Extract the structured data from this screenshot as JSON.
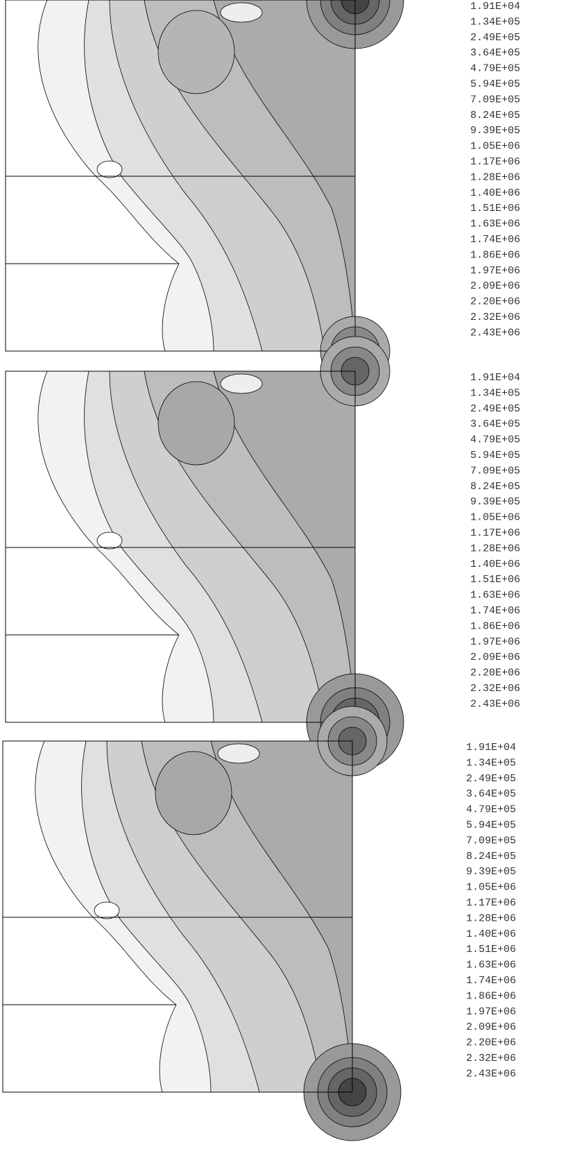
{
  "panels": [
    {
      "legend": [
        "1.91E+04",
        "1.34E+05",
        "2.49E+05",
        "3.64E+05",
        "4.79E+05",
        "5.94E+05",
        "7.09E+05",
        "8.24E+05",
        "9.39E+05",
        "1.05E+06",
        "1.17E+06",
        "1.28E+06",
        "1.40E+06",
        "1.51E+06",
        "1.63E+06",
        "1.74E+06",
        "1.86E+06",
        "1.97E+06",
        "2.09E+06",
        "2.20E+06",
        "2.32E+06",
        "2.43E+06"
      ]
    },
    {
      "legend": [
        "1.91E+04",
        "1.34E+05",
        "2.49E+05",
        "3.64E+05",
        "4.79E+05",
        "5.94E+05",
        "7.09E+05",
        "8.24E+05",
        "9.39E+05",
        "1.05E+06",
        "1.17E+06",
        "1.28E+06",
        "1.40E+06",
        "1.51E+06",
        "1.63E+06",
        "1.74E+06",
        "1.86E+06",
        "1.97E+06",
        "2.09E+06",
        "2.20E+06",
        "2.32E+06",
        "2.43E+06"
      ]
    },
    {
      "legend": [
        "1.91E+04",
        "1.34E+05",
        "2.49E+05",
        "3.64E+05",
        "4.79E+05",
        "5.94E+05",
        "7.09E+05",
        "8.24E+05",
        "9.39E+05",
        "1.05E+06",
        "1.17E+06",
        "1.28E+06",
        "1.40E+06",
        "1.51E+06",
        "1.63E+06",
        "1.74E+06",
        "1.86E+06",
        "1.97E+06",
        "2.09E+06",
        "2.20E+06",
        "2.32E+06",
        "2.43E+06"
      ]
    }
  ]
}
